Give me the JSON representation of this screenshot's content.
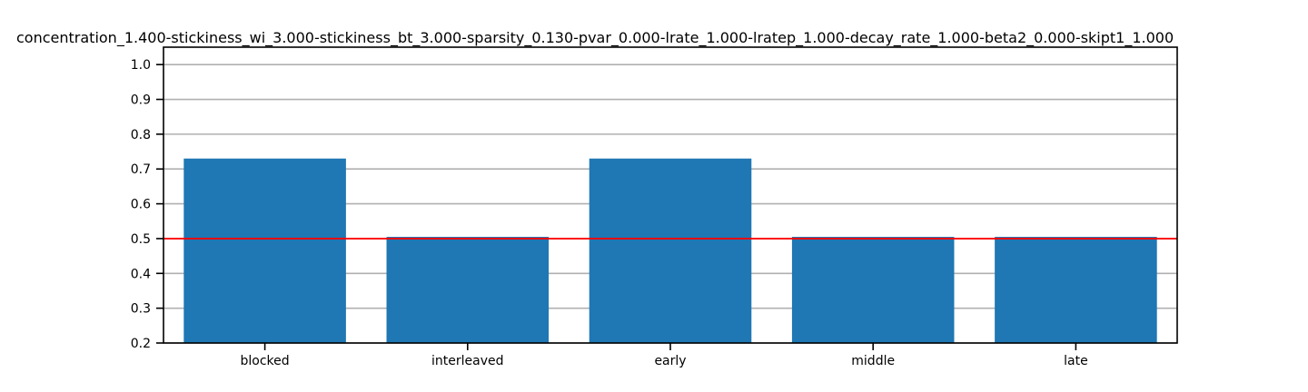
{
  "chart_data": {
    "type": "bar",
    "title": "concentration_1.400-stickiness_wi_3.000-stickiness_bt_3.000-sparsity_0.130-pvar_0.000-lrate_1.000-lratep_1.000-decay_rate_1.000-beta2_0.000-skipt1_1.000",
    "xlabel": "",
    "ylabel": "",
    "categories": [
      "blocked",
      "interleaved",
      "early",
      "middle",
      "late"
    ],
    "values": [
      0.73,
      0.505,
      0.73,
      0.505,
      0.505
    ],
    "ylim": [
      0.2,
      1.05
    ],
    "yticks": [
      0.2,
      0.3,
      0.4,
      0.5,
      0.6,
      0.7,
      0.8,
      0.9,
      1.0
    ],
    "ytick_labels": [
      "0.2",
      "0.3",
      "0.4",
      "0.5",
      "0.6",
      "0.7",
      "0.8",
      "0.9",
      "1.0"
    ],
    "grid": "horizontal",
    "bar_color": "#1f77b4",
    "reference_line": {
      "y": 0.5,
      "color": "#ff0000"
    }
  }
}
